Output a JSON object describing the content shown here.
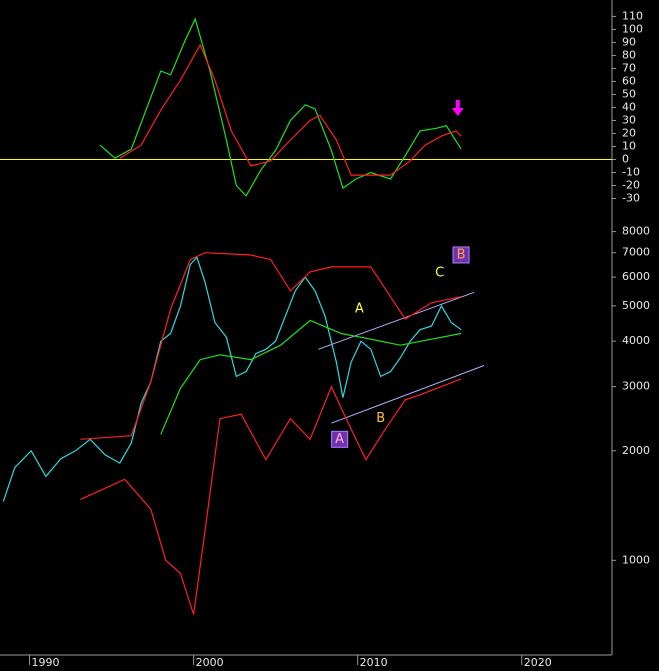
{
  "chart_data": [
    {
      "type": "line",
      "ylim": [
        -35,
        118
      ],
      "yticks": [
        110,
        100,
        90,
        80,
        70,
        60,
        50,
        40,
        30,
        20,
        10,
        0,
        -10,
        -20,
        -30
      ],
      "xlim": [
        1988.2,
        2025.5
      ],
      "reference_line": {
        "value": 0,
        "color": "#ffff00"
      },
      "series": [
        {
          "color": "#20e020",
          "x": [
            1994.3,
            1995.2,
            1996.2,
            1997.1,
            1998.0,
            1998.6,
            1999.5,
            2000.1,
            2001.0,
            2002.0,
            2002.6,
            2003.2,
            2004.1,
            2005.0,
            2005.9,
            2006.8,
            2007.4,
            2008.4,
            2009.1,
            2009.9,
            2010.8,
            2012.0,
            2012.9,
            2013.8,
            2014.8,
            2015.4,
            2016.3
          ],
          "values": [
            11,
            1,
            8,
            38,
            68,
            65,
            92,
            108,
            68,
            15,
            -20,
            -28,
            -8,
            7,
            30,
            42,
            39,
            7,
            -22,
            -15,
            -10,
            -15,
            3,
            22,
            24,
            26,
            8
          ]
        },
        {
          "color": "#ff2020",
          "x": [
            1995.5,
            1996.8,
            1998.0,
            1999.2,
            2000.4,
            2001.3,
            2002.3,
            2003.5,
            2004.7,
            2005.9,
            2007.1,
            2007.7,
            2008.7,
            2009.6,
            2010.8,
            2012.0,
            2013.2,
            2014.1,
            2015.1,
            2016.0,
            2016.3
          ],
          "values": [
            1,
            11,
            38,
            61,
            88,
            61,
            22,
            -5,
            -1,
            15,
            30,
            34,
            15,
            -12,
            -12,
            -12,
            -1,
            11,
            18,
            22,
            18
          ]
        }
      ],
      "annotations": [
        {
          "type": "arrow",
          "x": 2016.1,
          "y": 38,
          "color": "#ff00ff"
        }
      ]
    },
    {
      "type": "line",
      "log_scale": true,
      "ylim": [
        560,
        8500
      ],
      "yticks": [
        8000,
        7000,
        6000,
        5000,
        4000,
        3000,
        2000,
        1000
      ],
      "xlim": [
        1988.2,
        2025.5
      ],
      "xticks": [
        1990,
        2000,
        2010,
        2020
      ],
      "series": [
        {
          "color": "#30d8e0",
          "x": [
            1988.4,
            1989.1,
            1990.1,
            1991.0,
            1991.9,
            1992.8,
            1993.7,
            1994.6,
            1995.5,
            1996.2,
            1996.8,
            1997.4,
            1998.0,
            1998.6,
            1999.2,
            1999.8,
            2000.2,
            2000.7,
            2001.3,
            2002.0,
            2002.6,
            2003.2,
            2003.8,
            2004.4,
            2005.0,
            2005.6,
            2006.2,
            2006.8,
            2007.4,
            2008.0,
            2008.7,
            2009.1,
            2009.6,
            2010.2,
            2010.8,
            2011.4,
            2012.0,
            2012.6,
            2013.2,
            2013.8,
            2014.5,
            2015.1,
            2015.7,
            2016.3
          ],
          "values": [
            1450,
            1800,
            2000,
            1700,
            1900,
            2000,
            2150,
            1950,
            1850,
            2100,
            2700,
            3100,
            4000,
            4200,
            5000,
            6500,
            6800,
            5800,
            4500,
            4100,
            3200,
            3300,
            3700,
            3800,
            4000,
            4700,
            5500,
            6000,
            5500,
            4700,
            3500,
            2800,
            3500,
            4000,
            3800,
            3200,
            3300,
            3600,
            4000,
            4300,
            4400,
            5000,
            4500,
            4300
          ]
        },
        {
          "color": "#ff2020",
          "x": [
            1993.1,
            1996.2,
            1997.4,
            1998.6,
            1999.8,
            2000.7,
            2003.5,
            2004.7,
            2005.9,
            2007.1,
            2008.4,
            2010.8,
            2012.0,
            2012.9,
            2014.5,
            2016.3
          ],
          "values": [
            2150,
            2200,
            3100,
            4900,
            6700,
            7000,
            6900,
            6700,
            5500,
            6200,
            6400,
            6400,
            5300,
            4600,
            5100,
            5300
          ]
        },
        {
          "color": "#ff2020",
          "x": [
            1993.1,
            1995.8,
            1997.4,
            1998.3,
            1999.2,
            2000.0,
            2000.7,
            2001.6,
            2002.9,
            2004.4,
            2005.9,
            2007.1,
            2008.4,
            2009.3,
            2010.5,
            2011.7,
            2012.9,
            2013.8,
            2015.1,
            2016.3
          ],
          "values": [
            1470,
            1670,
            1380,
            1000,
            920,
            710,
            1210,
            2450,
            2520,
            1890,
            2450,
            2150,
            3000,
            2450,
            1890,
            2300,
            2760,
            2850,
            3000,
            3150
          ]
        },
        {
          "color": "#20e020",
          "x": [
            1998.0,
            1999.2,
            2000.4,
            2001.6,
            2003.5,
            2005.3,
            2007.1,
            2009.0,
            2010.8,
            2012.6,
            2014.5,
            2016.3
          ],
          "values": [
            2220,
            2970,
            3560,
            3670,
            3560,
            3900,
            4560,
            4200,
            4050,
            3900,
            4050,
            4200
          ]
        }
      ],
      "channel_lines": [
        {
          "color": "#b0b0ff",
          "x": [
            2007.6,
            2017.1
          ],
          "y": [
            3800,
            5450
          ]
        },
        {
          "color": "#b0b0ff",
          "x": [
            2008.4,
            2017.7
          ],
          "y": [
            2380,
            3430
          ]
        }
      ],
      "annotations": [
        {
          "text": "A",
          "x": 2010.1,
          "y": 4900,
          "color": "#ffff40"
        },
        {
          "text": "B",
          "x": 2011.4,
          "y": 2450,
          "color": "#ffc040"
        },
        {
          "text": "C",
          "x": 2015.0,
          "y": 6150,
          "color": "#ffff40"
        },
        {
          "text": "A",
          "x": 2008.9,
          "y": 2150,
          "color": "#ffb0e0",
          "boxed": true
        },
        {
          "text": "B",
          "x": 2016.3,
          "y": 6900,
          "color": "#ffa040",
          "boxed": true
        }
      ]
    }
  ]
}
